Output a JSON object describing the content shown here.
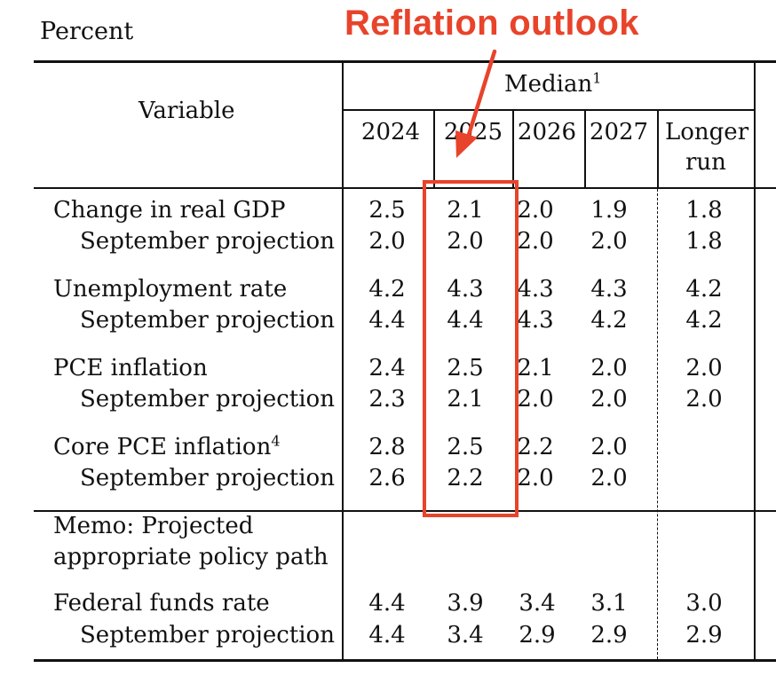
{
  "unit_label": "Percent",
  "annotation": "Reflation outlook",
  "colors": {
    "annotation": "#e8432b",
    "rules": "#111111"
  },
  "header": {
    "variable": "Variable",
    "median": "Median",
    "median_footnote": "1",
    "years": [
      "2024",
      "2025",
      "2026",
      "2027"
    ],
    "longer_run_line1": "Longer",
    "longer_run_line2": "run"
  },
  "rows": [
    {
      "label": "Change in real GDP",
      "values": [
        "2.5",
        "2.1",
        "2.0",
        "1.9",
        "1.8"
      ]
    },
    {
      "label": "September projection",
      "values": [
        "2.0",
        "2.0",
        "2.0",
        "2.0",
        "1.8"
      ]
    },
    {
      "label": "Unemployment rate",
      "values": [
        "4.2",
        "4.3",
        "4.3",
        "4.3",
        "4.2"
      ]
    },
    {
      "label": "September projection",
      "values": [
        "4.4",
        "4.4",
        "4.3",
        "4.2",
        "4.2"
      ]
    },
    {
      "label": "PCE inflation",
      "values": [
        "2.4",
        "2.5",
        "2.1",
        "2.0",
        "2.0"
      ]
    },
    {
      "label": "September projection",
      "values": [
        "2.3",
        "2.1",
        "2.0",
        "2.0",
        "2.0"
      ]
    },
    {
      "label": "Core PCE inflation",
      "footnote": "4",
      "values": [
        "2.8",
        "2.5",
        "2.2",
        "2.0",
        ""
      ]
    },
    {
      "label": "September projection",
      "values": [
        "2.6",
        "2.2",
        "2.0",
        "2.0",
        ""
      ]
    }
  ],
  "memo": {
    "line1": "Memo: Projected",
    "line2": "appropriate policy path",
    "rows": [
      {
        "label": "Federal funds rate",
        "values": [
          "4.4",
          "3.9",
          "3.4",
          "3.1",
          "3.0"
        ]
      },
      {
        "label": "September projection",
        "values": [
          "4.4",
          "3.4",
          "2.9",
          "2.9",
          "2.9"
        ]
      }
    ]
  }
}
